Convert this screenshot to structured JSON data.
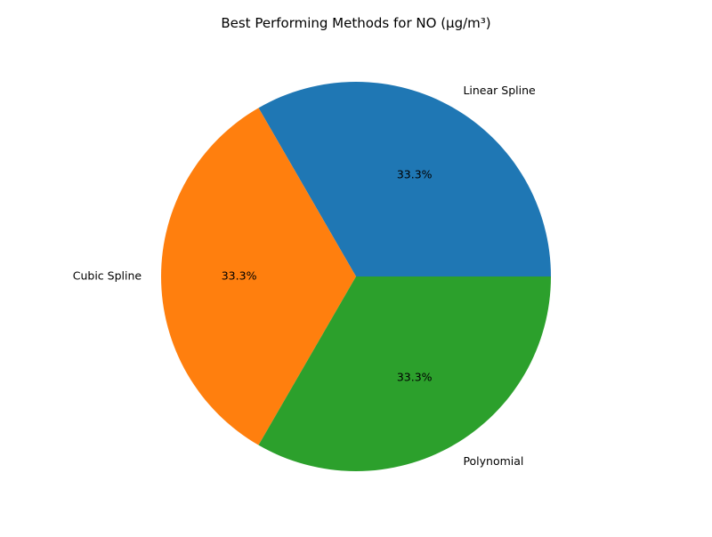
{
  "chart_data": {
    "type": "pie",
    "title": "Best Performing Methods for NO (µg/m³)",
    "categories": [
      "Linear Spline",
      "Cubic Spline",
      "Polynomial"
    ],
    "values": [
      1,
      1,
      1
    ],
    "percent_labels": [
      "33.3%",
      "33.3%",
      "33.3%"
    ],
    "colors": [
      "#1f77b4",
      "#ff7f0e",
      "#2ca02c"
    ],
    "start_angle_deg": 0,
    "direction": "counterclockwise",
    "legend": "none"
  }
}
